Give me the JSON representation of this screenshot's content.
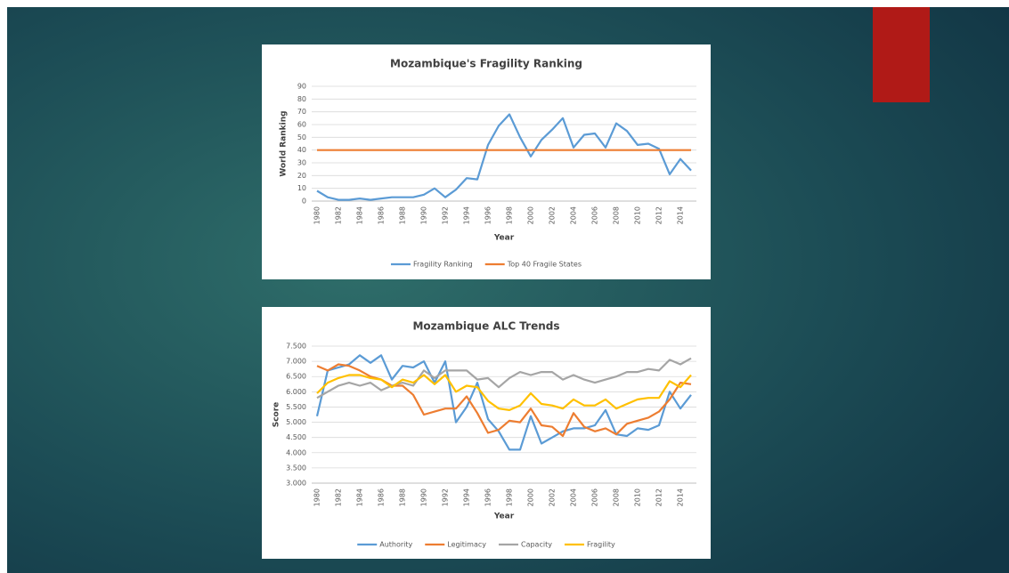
{
  "chart_data": [
    {
      "type": "line",
      "title": "Mozambique's Fragility Ranking",
      "x_label": "Year",
      "y_label": "World Ranking",
      "categories": [
        1980,
        null,
        1982,
        null,
        1984,
        null,
        1986,
        null,
        1988,
        null,
        1990,
        null,
        1992,
        null,
        1994,
        null,
        1996,
        null,
        1998,
        null,
        2000,
        null,
        2002,
        null,
        2004,
        null,
        2006,
        null,
        2008,
        null,
        2010,
        null,
        2012,
        null,
        2014,
        null
      ],
      "series": [
        {
          "name": "Fragility Ranking",
          "color": "#5b9bd5",
          "values": [
            8,
            3,
            1,
            1,
            2,
            1,
            2,
            3,
            3,
            3,
            5,
            10,
            3,
            9,
            18,
            17,
            44,
            59,
            68,
            50,
            35,
            48,
            56,
            65,
            42,
            52,
            53,
            42,
            61,
            55,
            44,
            45,
            41,
            21,
            33,
            24
          ]
        },
        {
          "name": "Top 40 Fragile States",
          "color": "#ed7d31",
          "values": [
            40,
            40,
            40,
            40,
            40,
            40,
            40,
            40,
            40,
            40,
            40,
            40,
            40,
            40,
            40,
            40,
            40,
            40,
            40,
            40,
            40,
            40,
            40,
            40,
            40,
            40,
            40,
            40,
            40,
            40,
            40,
            40,
            40,
            40,
            40,
            40
          ]
        }
      ],
      "ylim": [
        0,
        90
      ],
      "yticks": [
        0,
        10,
        20,
        30,
        40,
        50,
        60,
        70,
        80,
        90
      ],
      "grid": true,
      "legend": "bottom"
    },
    {
      "type": "line",
      "title": "Mozambique ALC Trends",
      "x_label": "Year",
      "y_label": "Score",
      "categories": [
        1980,
        null,
        1982,
        null,
        1984,
        null,
        1986,
        null,
        1988,
        null,
        1990,
        null,
        1992,
        null,
        1994,
        null,
        1996,
        null,
        1998,
        null,
        2000,
        null,
        2002,
        null,
        2004,
        null,
        2006,
        null,
        2008,
        null,
        2010,
        null,
        2012,
        null,
        2014,
        null
      ],
      "series": [
        {
          "name": "Authority",
          "color": "#5b9bd5",
          "values": [
            5.2,
            6.7,
            6.8,
            6.9,
            7.2,
            6.95,
            7.2,
            6.4,
            6.85,
            6.8,
            7.0,
            6.3,
            7.0,
            5.0,
            5.5,
            6.3,
            5.1,
            4.7,
            4.1,
            4.1,
            5.2,
            4.3,
            4.5,
            4.7,
            4.8,
            4.8,
            4.9,
            5.4,
            4.6,
            4.55,
            4.8,
            4.75,
            4.9,
            6.0,
            5.45,
            5.9
          ]
        },
        {
          "name": "Legitimacy",
          "color": "#ed7d31",
          "values": [
            6.85,
            6.7,
            6.9,
            6.85,
            6.7,
            6.5,
            6.4,
            6.2,
            6.2,
            5.9,
            5.25,
            5.35,
            5.45,
            5.45,
            5.85,
            5.3,
            4.65,
            4.75,
            5.05,
            5.0,
            5.45,
            4.9,
            4.85,
            4.55,
            5.3,
            4.85,
            4.7,
            4.8,
            4.6,
            4.95,
            5.05,
            5.15,
            5.35,
            5.75,
            6.3,
            6.25
          ]
        },
        {
          "name": "Capacity",
          "color": "#a5a5a5",
          "values": [
            5.8,
            6.0,
            6.2,
            6.3,
            6.2,
            6.3,
            6.05,
            6.2,
            6.3,
            6.2,
            6.7,
            6.45,
            6.7,
            6.7,
            6.7,
            6.4,
            6.45,
            6.15,
            6.45,
            6.65,
            6.55,
            6.65,
            6.65,
            6.4,
            6.55,
            6.4,
            6.3,
            6.4,
            6.5,
            6.65,
            6.65,
            6.75,
            6.7,
            7.05,
            6.9,
            7.1
          ]
        },
        {
          "name": "Fragility",
          "color": "#ffc000",
          "values": [
            5.95,
            6.3,
            6.45,
            6.55,
            6.55,
            6.45,
            6.4,
            6.15,
            6.4,
            6.3,
            6.55,
            6.25,
            6.55,
            6.0,
            6.2,
            6.15,
            5.7,
            5.45,
            5.4,
            5.55,
            5.95,
            5.6,
            5.55,
            5.45,
            5.75,
            5.55,
            5.55,
            5.75,
            5.45,
            5.6,
            5.75,
            5.8,
            5.8,
            6.35,
            6.15,
            6.55
          ]
        }
      ],
      "ylim": [
        3,
        7.5
      ],
      "yticks": [
        {
          "value": 3,
          "label": "3.000"
        },
        {
          "value": 3.5,
          "label": "3.500"
        },
        {
          "value": 4,
          "label": "4.000"
        },
        {
          "value": 4.5,
          "label": "4.500"
        },
        {
          "value": 5,
          "label": "5.000"
        },
        {
          "value": 5.5,
          "label": "5.500"
        },
        {
          "value": 6,
          "label": "6.000"
        },
        {
          "value": 6.5,
          "label": "6.500"
        },
        {
          "value": 7,
          "label": "7.000"
        },
        {
          "value": 7.5,
          "label": "7.500"
        }
      ],
      "grid": true,
      "legend": "bottom"
    }
  ]
}
